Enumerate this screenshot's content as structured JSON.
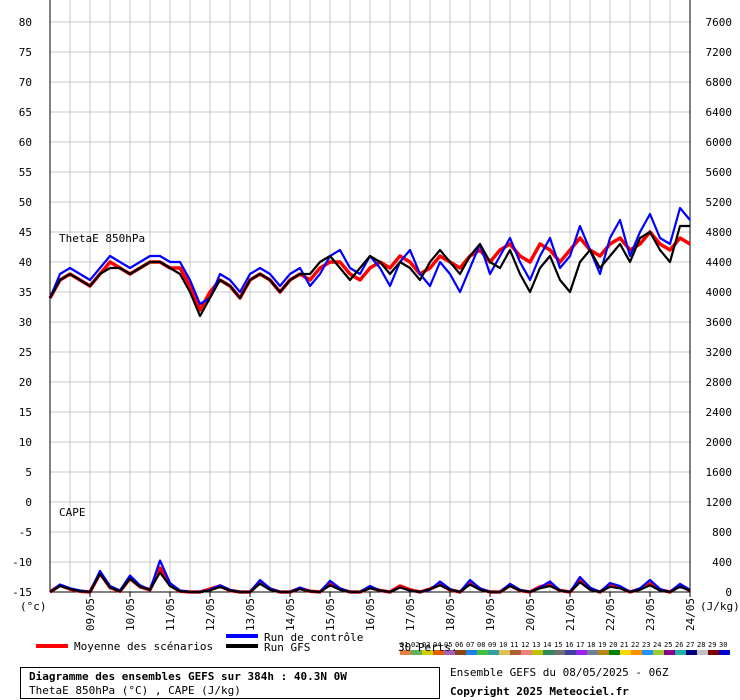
{
  "chart_data": {
    "type": "line",
    "left_axis": {
      "unit_label": "(°c)",
      "ticks": [
        80,
        75,
        70,
        65,
        60,
        55,
        50,
        45,
        40,
        35,
        30,
        25,
        20,
        15,
        10,
        5,
        0,
        -5,
        -10,
        -15
      ],
      "range": [
        -15,
        80
      ]
    },
    "right_axis": {
      "unit_label": "(J/kg)",
      "ticks": [
        7600,
        7200,
        6800,
        6400,
        6000,
        5600,
        5200,
        4800,
        4400,
        4000,
        3600,
        3200,
        2800,
        2400,
        2000,
        1600,
        1200,
        800,
        400,
        0
      ],
      "range": [
        0,
        7600
      ]
    },
    "x_ticks": [
      "09/05",
      "10/05",
      "11/05",
      "12/05",
      "13/05",
      "14/05",
      "15/05",
      "16/05",
      "17/05",
      "18/05",
      "19/05",
      "20/05",
      "21/05",
      "22/05",
      "23/05",
      "24/05"
    ],
    "grid": true,
    "panel_labels": {
      "thetae": "ThetaE 850hPa",
      "cape": "CAPE"
    },
    "series": [
      {
        "name": "Moyenne des scénarios",
        "color": "#ff0000",
        "panel": "thetae",
        "values": [
          34,
          37,
          38,
          37,
          36,
          38,
          40,
          39,
          38,
          39,
          40,
          40,
          39,
          39,
          36,
          32,
          35,
          37,
          36,
          34,
          37,
          38,
          37,
          35,
          37,
          38,
          37,
          39,
          40,
          40,
          38,
          37,
          39,
          40,
          39,
          41,
          40,
          38,
          39,
          41,
          40,
          39,
          41,
          42,
          40,
          42,
          43,
          41,
          40,
          43,
          42,
          40,
          42,
          44,
          42,
          41,
          43,
          44,
          42,
          43,
          45,
          43,
          42,
          44,
          43
        ]
      },
      {
        "name": "Run de contrôle",
        "color": "#0000ff",
        "panel": "thetae",
        "values": [
          34,
          38,
          39,
          38,
          37,
          39,
          41,
          40,
          39,
          40,
          41,
          41,
          40,
          40,
          37,
          33,
          34,
          38,
          37,
          35,
          38,
          39,
          38,
          36,
          38,
          39,
          36,
          38,
          41,
          42,
          39,
          38,
          41,
          39,
          36,
          40,
          42,
          38,
          36,
          40,
          38,
          35,
          39,
          43,
          38,
          41,
          44,
          40,
          37,
          41,
          44,
          39,
          41,
          46,
          42,
          38,
          44,
          47,
          41,
          45,
          48,
          44,
          43,
          49,
          47
        ]
      },
      {
        "name": "Run GFS",
        "color": "#000000",
        "panel": "thetae",
        "values": [
          34,
          37,
          38,
          37,
          36,
          38,
          39,
          39,
          38,
          39,
          40,
          40,
          39,
          38,
          35,
          31,
          34,
          37,
          36,
          34,
          37,
          38,
          37,
          35,
          37,
          38,
          38,
          40,
          41,
          39,
          37,
          39,
          41,
          40,
          38,
          40,
          39,
          37,
          40,
          42,
          40,
          38,
          41,
          43,
          40,
          39,
          42,
          38,
          35,
          39,
          41,
          37,
          35,
          40,
          42,
          39,
          41,
          43,
          40,
          44,
          45,
          42,
          40,
          46,
          46
        ]
      },
      {
        "name": "Moyenne des scénarios",
        "color": "#ff0000",
        "panel": "cape",
        "values": [
          0,
          90,
          40,
          10,
          0,
          250,
          60,
          10,
          180,
          70,
          30,
          320,
          90,
          10,
          0,
          0,
          40,
          80,
          20,
          0,
          0,
          130,
          40,
          0,
          0,
          50,
          10,
          0,
          120,
          40,
          0,
          0,
          60,
          20,
          0,
          80,
          30,
          0,
          40,
          100,
          30,
          0,
          120,
          40,
          0,
          0,
          90,
          20,
          0,
          70,
          100,
          20,
          0,
          150,
          40,
          0,
          90,
          60,
          0,
          40,
          110,
          30,
          0,
          90,
          20
        ]
      },
      {
        "name": "Run de contrôle",
        "color": "#0000ff",
        "panel": "cape",
        "values": [
          0,
          100,
          50,
          20,
          0,
          280,
          80,
          20,
          220,
          90,
          30,
          420,
          120,
          20,
          0,
          0,
          30,
          90,
          30,
          0,
          0,
          160,
          50,
          0,
          0,
          60,
          10,
          0,
          150,
          50,
          0,
          0,
          80,
          20,
          0,
          60,
          20,
          0,
          30,
          140,
          40,
          0,
          160,
          50,
          0,
          0,
          110,
          30,
          0,
          60,
          140,
          20,
          0,
          200,
          60,
          0,
          120,
          80,
          0,
          50,
          160,
          40,
          0,
          110,
          30
        ]
      },
      {
        "name": "Run GFS",
        "color": "#000000",
        "panel": "cape",
        "values": [
          0,
          80,
          40,
          10,
          0,
          240,
          60,
          10,
          180,
          70,
          30,
          260,
          80,
          10,
          0,
          0,
          20,
          70,
          20,
          0,
          0,
          110,
          30,
          0,
          0,
          40,
          10,
          0,
          90,
          30,
          0,
          0,
          50,
          20,
          0,
          60,
          20,
          0,
          40,
          90,
          30,
          0,
          100,
          30,
          0,
          0,
          80,
          20,
          0,
          50,
          80,
          20,
          0,
          130,
          30,
          0,
          70,
          50,
          0,
          30,
          90,
          20,
          0,
          70,
          20
        ]
      }
    ],
    "perturbation_colors": [
      "#e88040",
      "#60b060",
      "#d0d000",
      "#e06000",
      "#a060c0",
      "#8b4513",
      "#2080f0",
      "#40c040",
      "#30a0a0",
      "#e0c050",
      "#b06030",
      "#f08080",
      "#c0c000",
      "#2e8b57",
      "#707070",
      "#4040a0",
      "#a020f0",
      "#708090",
      "#b8860b",
      "#008000",
      "#ffd700",
      "#ff8c00",
      "#1e90ff",
      "#9acd32",
      "#8b008b",
      "#20b2aa",
      "#000080",
      "#c0c0c0",
      "#800000",
      "#0000cd"
    ]
  },
  "legend": {
    "mean_label": "Moyenne des scénarios",
    "control_label": "Run de contrôle",
    "gfs_label": "Run GFS",
    "perts_label": "30 Perts.",
    "pert_numbers": [
      "01",
      "02",
      "03",
      "04",
      "05",
      "06",
      "07",
      "08",
      "09",
      "10",
      "11",
      "12",
      "13",
      "14",
      "15",
      "16",
      "17",
      "18",
      "19",
      "20",
      "21",
      "22",
      "23",
      "24",
      "25",
      "26",
      "27",
      "28",
      "29",
      "30"
    ]
  },
  "footer": {
    "title": "Diagramme des ensembles GEFS sur 384h : 40.3N 0W",
    "subtitle": "ThetaE 850hPa (°C) , CAPE (J/kg)",
    "ensemble": "Ensemble GEFS du 08/05/2025 - 06Z",
    "copyright": "Copyright 2025 Meteociel.fr"
  }
}
